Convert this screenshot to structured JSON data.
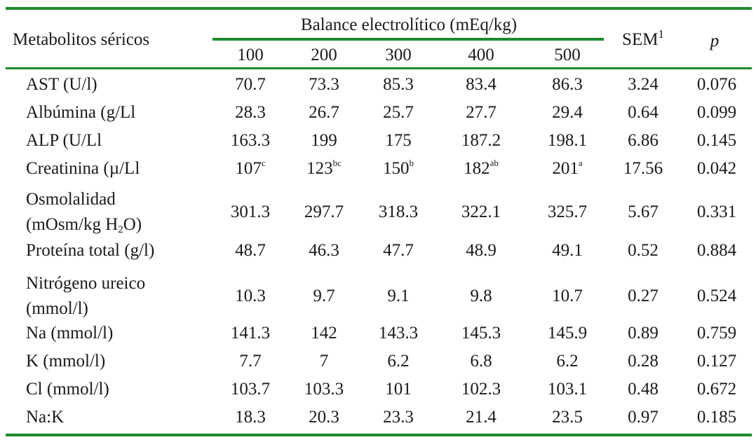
{
  "header": {
    "row_label": "Metabolitos séricos",
    "group_label": "Balance electrolítico (mEq/kg)",
    "levels": [
      "100",
      "200",
      "300",
      "400",
      "500"
    ],
    "sem_label": "SEM",
    "sem_footnote": "1",
    "p_label": "p"
  },
  "rows": [
    {
      "label": "AST (U/l)",
      "values": [
        [
          "70.7",
          ""
        ],
        [
          "73.3",
          ""
        ],
        [
          "85.3",
          ""
        ],
        [
          "83.4",
          ""
        ],
        [
          "86.3",
          ""
        ]
      ],
      "sem": "3.24",
      "p": "0.076"
    },
    {
      "label": "Albúmina (g/Ll",
      "values": [
        [
          "28.3",
          ""
        ],
        [
          "26.7",
          ""
        ],
        [
          "25.7",
          ""
        ],
        [
          "27.7",
          ""
        ],
        [
          "29.4",
          ""
        ]
      ],
      "sem": "0.64",
      "p": "0.099"
    },
    {
      "label": "ALP (U/Ll",
      "values": [
        [
          "163.3",
          ""
        ],
        [
          "199",
          ""
        ],
        [
          "175",
          ""
        ],
        [
          "187.2",
          ""
        ],
        [
          "198.1",
          ""
        ]
      ],
      "sem": "6.86",
      "p": "0.145"
    },
    {
      "label": "Creatinina (µ/Ll",
      "values": [
        [
          "107",
          "c"
        ],
        [
          "123",
          "bc"
        ],
        [
          "150",
          "b"
        ],
        [
          "182",
          "ab"
        ],
        [
          "201",
          "a"
        ]
      ],
      "sem": "17.56",
      "p": "0.042"
    },
    {
      "label_lines": [
        "Osmolalidad",
        "(mOsm/kg H",
        "2",
        "O)"
      ],
      "values": [
        [
          "301.3",
          ""
        ],
        [
          "297.7",
          ""
        ],
        [
          "318.3",
          ""
        ],
        [
          "322.1",
          ""
        ],
        [
          "325.7",
          ""
        ]
      ],
      "sem": "5.67",
      "p": "0.331"
    },
    {
      "label": "Proteína total (g/l)",
      "values": [
        [
          "48.7",
          ""
        ],
        [
          "46.3",
          ""
        ],
        [
          "47.7",
          ""
        ],
        [
          "48.9",
          ""
        ],
        [
          "49.1",
          ""
        ]
      ],
      "sem": "0.52",
      "p": "0.884"
    },
    {
      "label_lines": [
        "Nitrógeno ureico",
        "(mmol/l)"
      ],
      "values": [
        [
          "10.3",
          ""
        ],
        [
          "9.7",
          ""
        ],
        [
          "9.1",
          ""
        ],
        [
          "9.8",
          ""
        ],
        [
          "10.7",
          ""
        ]
      ],
      "sem": "0.27",
      "p": "0.524"
    },
    {
      "label": "Na (mmol/l)",
      "values": [
        [
          "141.3",
          ""
        ],
        [
          "142",
          ""
        ],
        [
          "143.3",
          ""
        ],
        [
          "145.3",
          ""
        ],
        [
          "145.9",
          ""
        ]
      ],
      "sem": "0.89",
      "p": "0.759"
    },
    {
      "label": "K (mmol/l)",
      "values": [
        [
          "7.7",
          ""
        ],
        [
          "7",
          ""
        ],
        [
          "6.2",
          ""
        ],
        [
          "6.8",
          ""
        ],
        [
          "6.2",
          ""
        ]
      ],
      "sem": "0.28",
      "p": "0.127"
    },
    {
      "label": "Cl (mmol/l)",
      "values": [
        [
          "103.7",
          ""
        ],
        [
          "103.3",
          ""
        ],
        [
          "101",
          ""
        ],
        [
          "102.3",
          ""
        ],
        [
          "103.1",
          ""
        ]
      ],
      "sem": "0.48",
      "p": "0.672"
    },
    {
      "label": "Na:K",
      "values": [
        [
          "18.3",
          ""
        ],
        [
          "20.3",
          ""
        ],
        [
          "23.3",
          ""
        ],
        [
          "21.4",
          ""
        ],
        [
          "23.5",
          ""
        ]
      ],
      "sem": "0.97",
      "p": "0.185"
    }
  ]
}
